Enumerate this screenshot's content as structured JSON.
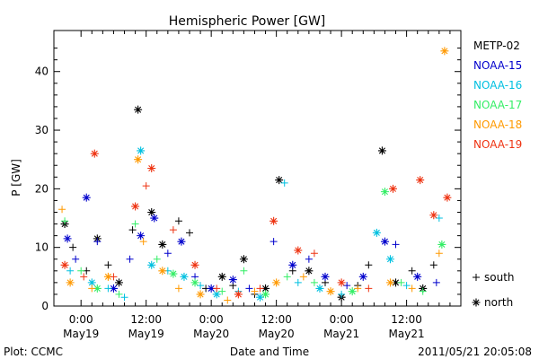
{
  "chart_data": {
    "type": "scatter",
    "title": "Hemispheric Power [GW]",
    "ylabel": "P [GW]",
    "xlabel": "Date and Time",
    "ylim": [
      0,
      47
    ],
    "yticks": [
      0,
      10,
      20,
      30,
      40
    ],
    "xlim": [
      "2011-05-18 19:00",
      "2011-05-21 22:00"
    ],
    "xticks": [
      {
        "t": "2011-05-19 00:00",
        "time": "0:00",
        "date": "May19"
      },
      {
        "t": "2011-05-19 12:00",
        "time": "12:00",
        "date": "May19"
      },
      {
        "t": "2011-05-20 00:00",
        "time": "0:00",
        "date": "May20"
      },
      {
        "t": "2011-05-20 12:00",
        "time": "12:00",
        "date": "May20"
      },
      {
        "t": "2011-05-21 00:00",
        "time": "0:00",
        "date": "May21"
      },
      {
        "t": "2011-05-21 12:00",
        "time": "12:00",
        "date": "May21"
      }
    ],
    "marker_legend": [
      {
        "symbol": "+",
        "label": "south"
      },
      {
        "symbol": "*",
        "label": "north"
      }
    ],
    "series": [
      {
        "name": "METP-02",
        "color": "#000000",
        "points": [
          {
            "t": "2011-05-18 21:00",
            "v": 14,
            "m": "n"
          },
          {
            "t": "2011-05-18 22:30",
            "v": 10,
            "m": "s"
          },
          {
            "t": "2011-05-19 01:00",
            "v": 6,
            "m": "s"
          },
          {
            "t": "2011-05-19 03:00",
            "v": 11.5,
            "m": "n"
          },
          {
            "t": "2011-05-19 05:00",
            "v": 7,
            "m": "s"
          },
          {
            "t": "2011-05-19 07:00",
            "v": 4,
            "m": "n"
          },
          {
            "t": "2011-05-19 09:30",
            "v": 13,
            "m": "s"
          },
          {
            "t": "2011-05-19 10:30",
            "v": 33.5,
            "m": "n"
          },
          {
            "t": "2011-05-19 13:00",
            "v": 16,
            "m": "n"
          },
          {
            "t": "2011-05-19 15:00",
            "v": 10.5,
            "m": "n"
          },
          {
            "t": "2011-05-19 18:00",
            "v": 14.5,
            "m": "s"
          },
          {
            "t": "2011-05-19 20:00",
            "v": 12.5,
            "m": "s"
          },
          {
            "t": "2011-05-19 23:00",
            "v": 3,
            "m": "s"
          },
          {
            "t": "2011-05-20 02:00",
            "v": 5,
            "m": "n"
          },
          {
            "t": "2011-05-20 04:00",
            "v": 3.5,
            "m": "s"
          },
          {
            "t": "2011-05-20 06:00",
            "v": 8,
            "m": "n"
          },
          {
            "t": "2011-05-20 08:00",
            "v": 2,
            "m": "s"
          },
          {
            "t": "2011-05-20 10:00",
            "v": 3,
            "m": "n"
          },
          {
            "t": "2011-05-20 12:30",
            "v": 21.5,
            "m": "n"
          },
          {
            "t": "2011-05-20 15:00",
            "v": 6,
            "m": "s"
          },
          {
            "t": "2011-05-20 18:00",
            "v": 6,
            "m": "n"
          },
          {
            "t": "2011-05-20 21:00",
            "v": 4,
            "m": "s"
          },
          {
            "t": "2011-05-21 00:00",
            "v": 1.5,
            "m": "n"
          },
          {
            "t": "2011-05-21 03:00",
            "v": 3.5,
            "m": "s"
          },
          {
            "t": "2011-05-21 05:00",
            "v": 7,
            "m": "s"
          },
          {
            "t": "2011-05-21 07:30",
            "v": 26.5,
            "m": "n"
          },
          {
            "t": "2011-05-21 10:00",
            "v": 4,
            "m": "n"
          },
          {
            "t": "2011-05-21 13:00",
            "v": 6,
            "m": "s"
          },
          {
            "t": "2011-05-21 15:00",
            "v": 3,
            "m": "n"
          },
          {
            "t": "2011-05-21 17:00",
            "v": 7,
            "m": "s"
          }
        ]
      },
      {
        "name": "NOAA-15",
        "color": "#0000cc",
        "points": [
          {
            "t": "2011-05-18 21:30",
            "v": 11.5,
            "m": "n"
          },
          {
            "t": "2011-05-18 23:00",
            "v": 8,
            "m": "s"
          },
          {
            "t": "2011-05-19 01:00",
            "v": 18.5,
            "m": "n"
          },
          {
            "t": "2011-05-19 03:00",
            "v": 11,
            "m": "s"
          },
          {
            "t": "2011-05-19 06:00",
            "v": 3,
            "m": "n"
          },
          {
            "t": "2011-05-19 09:00",
            "v": 8,
            "m": "s"
          },
          {
            "t": "2011-05-19 11:00",
            "v": 12,
            "m": "n"
          },
          {
            "t": "2011-05-19 13:30",
            "v": 15,
            "m": "n"
          },
          {
            "t": "2011-05-19 16:00",
            "v": 9,
            "m": "s"
          },
          {
            "t": "2011-05-19 18:30",
            "v": 11,
            "m": "n"
          },
          {
            "t": "2011-05-19 21:00",
            "v": 5,
            "m": "s"
          },
          {
            "t": "2011-05-20 00:00",
            "v": 3,
            "m": "n"
          },
          {
            "t": "2011-05-20 04:00",
            "v": 4.5,
            "m": "n"
          },
          {
            "t": "2011-05-20 07:00",
            "v": 3,
            "m": "s"
          },
          {
            "t": "2011-05-20 11:30",
            "v": 11,
            "m": "s"
          },
          {
            "t": "2011-05-20 15:00",
            "v": 7,
            "m": "n"
          },
          {
            "t": "2011-05-20 18:00",
            "v": 8,
            "m": "s"
          },
          {
            "t": "2011-05-20 21:00",
            "v": 5,
            "m": "n"
          },
          {
            "t": "2011-05-21 01:00",
            "v": 3.5,
            "m": "s"
          },
          {
            "t": "2011-05-21 04:00",
            "v": 5,
            "m": "n"
          },
          {
            "t": "2011-05-21 08:00",
            "v": 11,
            "m": "n"
          },
          {
            "t": "2011-05-21 10:00",
            "v": 10.5,
            "m": "s"
          },
          {
            "t": "2011-05-21 14:00",
            "v": 5,
            "m": "n"
          },
          {
            "t": "2011-05-21 17:30",
            "v": 4,
            "m": "s"
          }
        ]
      },
      {
        "name": "NOAA-16",
        "color": "#00c0e0",
        "points": [
          {
            "t": "2011-05-18 22:00",
            "v": 6,
            "m": "s"
          },
          {
            "t": "2011-05-19 02:00",
            "v": 4,
            "m": "n"
          },
          {
            "t": "2011-05-19 05:00",
            "v": 3,
            "m": "s"
          },
          {
            "t": "2011-05-19 08:00",
            "v": 1.5,
            "m": "s"
          },
          {
            "t": "2011-05-19 11:00",
            "v": 26.5,
            "m": "n"
          },
          {
            "t": "2011-05-19 13:00",
            "v": 7,
            "m": "n"
          },
          {
            "t": "2011-05-19 16:00",
            "v": 6,
            "m": "s"
          },
          {
            "t": "2011-05-19 19:00",
            "v": 5,
            "m": "n"
          },
          {
            "t": "2011-05-19 22:00",
            "v": 3.5,
            "m": "s"
          },
          {
            "t": "2011-05-20 01:00",
            "v": 2,
            "m": "n"
          },
          {
            "t": "2011-05-20 05:00",
            "v": 2.5,
            "m": "s"
          },
          {
            "t": "2011-05-20 09:00",
            "v": 1.5,
            "m": "n"
          },
          {
            "t": "2011-05-20 13:30",
            "v": 21,
            "m": "s"
          },
          {
            "t": "2011-05-20 16:00",
            "v": 4,
            "m": "s"
          },
          {
            "t": "2011-05-20 20:00",
            "v": 3,
            "m": "n"
          },
          {
            "t": "2011-05-21 00:00",
            "v": 2,
            "m": "s"
          },
          {
            "t": "2011-05-21 06:30",
            "v": 12.5,
            "m": "n"
          },
          {
            "t": "2011-05-21 09:00",
            "v": 8,
            "m": "n"
          },
          {
            "t": "2011-05-21 12:00",
            "v": 3.5,
            "m": "s"
          },
          {
            "t": "2011-05-21 18:00",
            "v": 15,
            "m": "s"
          }
        ]
      },
      {
        "name": "NOAA-17",
        "color": "#33ee66",
        "points": [
          {
            "t": "2011-05-18 21:00",
            "v": 14.5,
            "m": "s"
          },
          {
            "t": "2011-05-19 00:00",
            "v": 6,
            "m": "s"
          },
          {
            "t": "2011-05-19 03:00",
            "v": 3,
            "m": "n"
          },
          {
            "t": "2011-05-19 07:00",
            "v": 2,
            "m": "s"
          },
          {
            "t": "2011-05-19 10:00",
            "v": 14,
            "m": "s"
          },
          {
            "t": "2011-05-19 14:00",
            "v": 8,
            "m": "s"
          },
          {
            "t": "2011-05-19 17:00",
            "v": 5.5,
            "m": "n"
          },
          {
            "t": "2011-05-19 21:00",
            "v": 4,
            "m": "n"
          },
          {
            "t": "2011-05-20 02:00",
            "v": 2.5,
            "m": "s"
          },
          {
            "t": "2011-05-20 06:00",
            "v": 6,
            "m": "s"
          },
          {
            "t": "2011-05-20 10:00",
            "v": 2,
            "m": "n"
          },
          {
            "t": "2011-05-20 14:00",
            "v": 5,
            "m": "s"
          },
          {
            "t": "2011-05-20 19:00",
            "v": 4,
            "m": "s"
          },
          {
            "t": "2011-05-21 02:00",
            "v": 2.5,
            "m": "n"
          },
          {
            "t": "2011-05-21 08:00",
            "v": 19.5,
            "m": "n"
          },
          {
            "t": "2011-05-21 11:00",
            "v": 4,
            "m": "s"
          },
          {
            "t": "2011-05-21 15:00",
            "v": 2.5,
            "m": "s"
          },
          {
            "t": "2011-05-21 18:30",
            "v": 10.5,
            "m": "n"
          }
        ]
      },
      {
        "name": "NOAA-18",
        "color": "#ff9900",
        "points": [
          {
            "t": "2011-05-18 20:30",
            "v": 16.5,
            "m": "s"
          },
          {
            "t": "2011-05-18 22:00",
            "v": 4,
            "m": "n"
          },
          {
            "t": "2011-05-19 02:00",
            "v": 3,
            "m": "s"
          },
          {
            "t": "2011-05-19 05:00",
            "v": 5,
            "m": "n"
          },
          {
            "t": "2011-05-19 10:30",
            "v": 25,
            "m": "n"
          },
          {
            "t": "2011-05-19 11:30",
            "v": 11,
            "m": "s"
          },
          {
            "t": "2011-05-19 15:00",
            "v": 6,
            "m": "n"
          },
          {
            "t": "2011-05-19 18:00",
            "v": 3,
            "m": "s"
          },
          {
            "t": "2011-05-19 22:00",
            "v": 2,
            "m": "n"
          },
          {
            "t": "2011-05-20 03:00",
            "v": 1,
            "m": "s"
          },
          {
            "t": "2011-05-20 08:00",
            "v": 2.5,
            "m": "s"
          },
          {
            "t": "2011-05-20 12:00",
            "v": 4,
            "m": "n"
          },
          {
            "t": "2011-05-20 17:00",
            "v": 5,
            "m": "s"
          },
          {
            "t": "2011-05-20 22:00",
            "v": 2.5,
            "m": "n"
          },
          {
            "t": "2011-05-21 03:00",
            "v": 3,
            "m": "s"
          },
          {
            "t": "2011-05-21 09:00",
            "v": 4,
            "m": "n"
          },
          {
            "t": "2011-05-21 13:00",
            "v": 3,
            "m": "s"
          },
          {
            "t": "2011-05-21 19:00",
            "v": 43.5,
            "m": "n"
          },
          {
            "t": "2011-05-21 18:00",
            "v": 9,
            "m": "s"
          }
        ]
      },
      {
        "name": "NOAA-19",
        "color": "#ee3311",
        "points": [
          {
            "t": "2011-05-18 21:00",
            "v": 7,
            "m": "n"
          },
          {
            "t": "2011-05-19 00:30",
            "v": 5,
            "m": "s"
          },
          {
            "t": "2011-05-19 02:30",
            "v": 26,
            "m": "n"
          },
          {
            "t": "2011-05-19 06:00",
            "v": 5,
            "m": "s"
          },
          {
            "t": "2011-05-19 10:00",
            "v": 17,
            "m": "n"
          },
          {
            "t": "2011-05-19 12:00",
            "v": 20.5,
            "m": "s"
          },
          {
            "t": "2011-05-19 13:00",
            "v": 23.5,
            "m": "n"
          },
          {
            "t": "2011-05-19 17:00",
            "v": 13,
            "m": "s"
          },
          {
            "t": "2011-05-19 21:00",
            "v": 7,
            "m": "n"
          },
          {
            "t": "2011-05-20 01:00",
            "v": 3,
            "m": "s"
          },
          {
            "t": "2011-05-20 05:00",
            "v": 2,
            "m": "n"
          },
          {
            "t": "2011-05-20 09:00",
            "v": 3,
            "m": "s"
          },
          {
            "t": "2011-05-20 11:30",
            "v": 14.5,
            "m": "n"
          },
          {
            "t": "2011-05-20 16:00",
            "v": 9.5,
            "m": "n"
          },
          {
            "t": "2011-05-20 19:00",
            "v": 9,
            "m": "s"
          },
          {
            "t": "2011-05-21 00:00",
            "v": 4,
            "m": "n"
          },
          {
            "t": "2011-05-21 05:00",
            "v": 3,
            "m": "s"
          },
          {
            "t": "2011-05-21 09:30",
            "v": 20,
            "m": "n"
          },
          {
            "t": "2011-05-21 14:30",
            "v": 21.5,
            "m": "n"
          },
          {
            "t": "2011-05-21 17:00",
            "v": 15.5,
            "m": "n"
          },
          {
            "t": "2011-05-21 19:30",
            "v": 18.5,
            "m": "n"
          }
        ]
      }
    ]
  },
  "footer": {
    "credit": "Plot: CCMC",
    "timestamp": "2011/05/21  20:05:08"
  }
}
